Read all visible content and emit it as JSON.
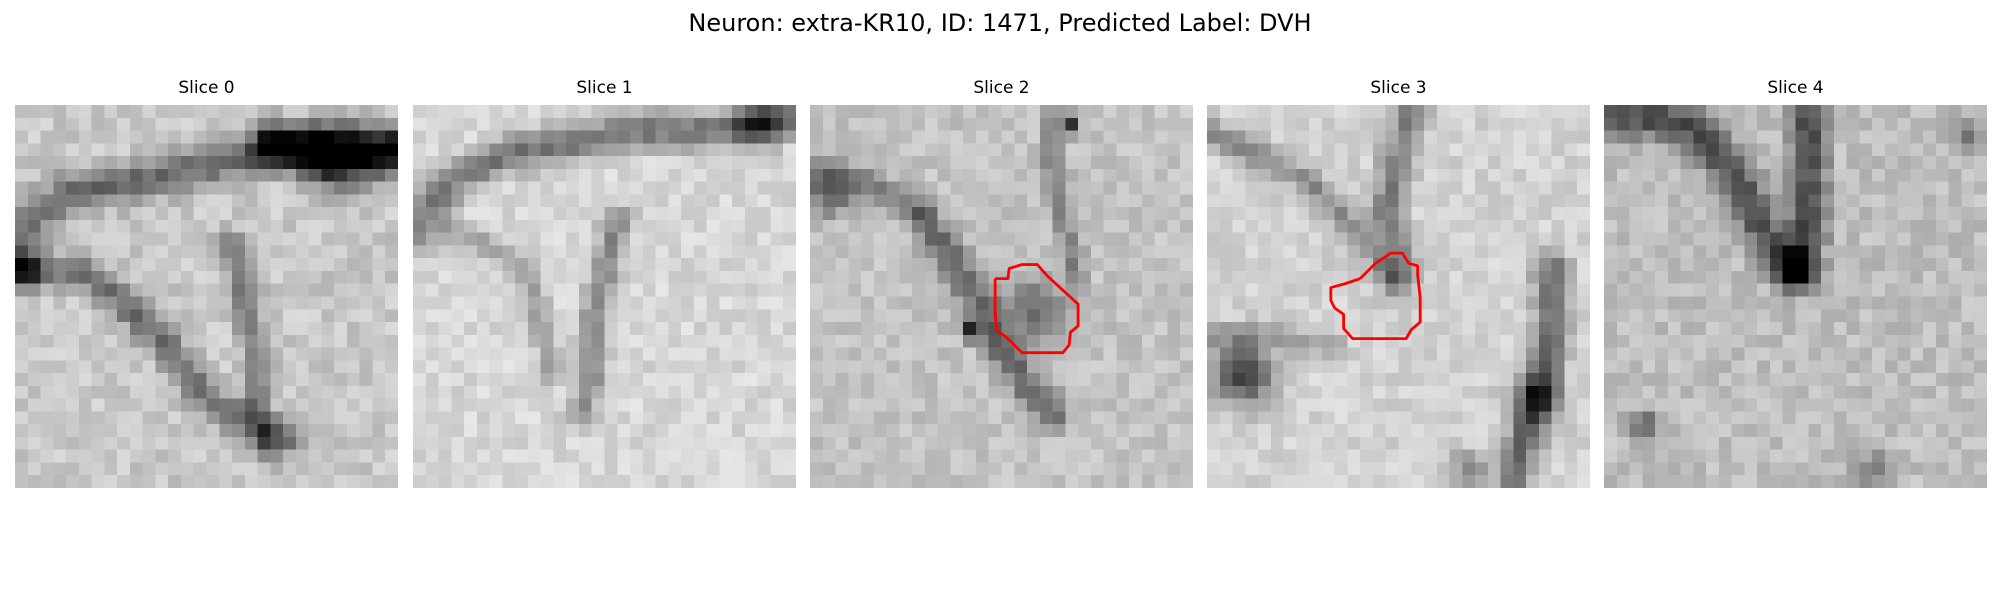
{
  "figure": {
    "title": "Neuron: extra-KR10, ID: 1471, Predicted Label: DVH"
  },
  "panels": [
    {
      "title": "Slice 0",
      "has_roi": false
    },
    {
      "title": "Slice 1",
      "has_roi": false
    },
    {
      "title": "Slice 2",
      "has_roi": true
    },
    {
      "title": "Slice 3",
      "has_roi": true
    },
    {
      "title": "Slice 4",
      "has_roi": false
    }
  ],
  "colors": {
    "roi_outline": "#ff0000",
    "background": "#ffffff",
    "image_colormap": "grayscale"
  }
}
